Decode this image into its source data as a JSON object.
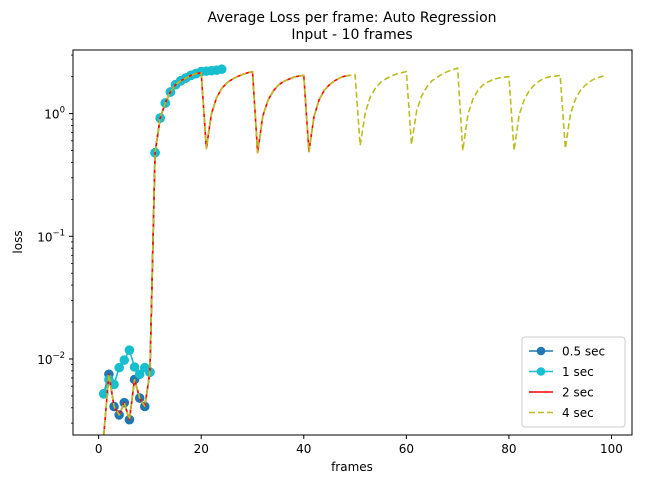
{
  "chart_data": {
    "type": "line",
    "title": "Average Loss per frame: Auto Regression",
    "subtitle": "Input - 10 frames",
    "xlabel": "frames",
    "ylabel": "loss",
    "yscale": "log",
    "xlim": [
      -5,
      104
    ],
    "ylim": [
      0.0024,
      3.3
    ],
    "x_ticks": [
      0,
      20,
      40,
      60,
      80,
      100
    ],
    "x_tick_labels": [
      "0",
      "20",
      "40",
      "60",
      "80",
      "100"
    ],
    "y_ticks": [
      {
        "value": 0.01,
        "base": "10",
        "exp": "−2"
      },
      {
        "value": 0.1,
        "base": "10",
        "exp": "−1"
      },
      {
        "value": 1,
        "base": "10",
        "exp": "0"
      }
    ],
    "legend_position": "lower right",
    "series": [
      {
        "name": "0.5 sec",
        "color": "#1f77b4",
        "style": "solid-marker",
        "x": [
          1,
          2,
          3,
          4,
          5,
          6,
          7,
          8,
          9,
          10,
          11,
          12,
          13,
          14,
          15,
          16,
          17,
          18,
          19
        ],
        "y": [
          0.0052,
          0.0075,
          0.0041,
          0.0035,
          0.0044,
          0.0032,
          0.0068,
          0.0048,
          0.0041,
          0.0078,
          0.48,
          0.92,
          1.22,
          1.5,
          1.72,
          1.85,
          1.95,
          2.05,
          2.12
        ]
      },
      {
        "name": "1 sec",
        "color": "#17becf",
        "style": "solid-marker",
        "x": [
          1,
          2,
          3,
          4,
          5,
          6,
          7,
          8,
          9,
          10,
          11,
          12,
          13,
          14,
          15,
          16,
          17,
          18,
          19,
          20,
          21,
          22,
          23,
          24
        ],
        "y": [
          0.0052,
          0.0068,
          0.0062,
          0.0085,
          0.0098,
          0.0118,
          0.0086,
          0.0075,
          0.0085,
          0.0078,
          0.48,
          0.92,
          1.22,
          1.5,
          1.72,
          1.85,
          1.95,
          2.05,
          2.12,
          2.2,
          2.22,
          2.24,
          2.26,
          2.3
        ]
      },
      {
        "name": "2 sec",
        "color": "#ff0000",
        "style": "solid",
        "x": [
          1,
          2,
          3,
          4,
          5,
          6,
          7,
          8,
          9,
          10,
          11,
          12,
          13,
          14,
          15,
          16,
          17,
          18,
          19,
          20,
          21,
          22,
          23,
          24,
          25,
          26,
          27,
          28,
          29,
          30,
          31,
          32,
          33,
          34,
          35,
          36,
          37,
          38,
          39,
          40,
          41,
          42,
          43,
          44,
          45,
          46,
          47,
          48,
          49
        ],
        "y": [
          0.0024,
          0.0075,
          0.0041,
          0.0035,
          0.0044,
          0.0032,
          0.0068,
          0.0048,
          0.0041,
          0.0078,
          0.48,
          0.92,
          1.22,
          1.5,
          1.72,
          1.85,
          1.95,
          2.05,
          2.12,
          2.15,
          0.52,
          1.0,
          1.35,
          1.6,
          1.78,
          1.9,
          2.0,
          2.08,
          2.15,
          2.2,
          0.48,
          0.95,
          1.28,
          1.52,
          1.7,
          1.82,
          1.9,
          1.98,
          2.02,
          2.05,
          0.49,
          0.95,
          1.3,
          1.55,
          1.72,
          1.85,
          1.95,
          2.02,
          2.05
        ]
      },
      {
        "name": "4 sec",
        "color": "#bcbd22",
        "style": "dashed",
        "x": [
          1,
          2,
          3,
          4,
          5,
          6,
          7,
          8,
          9,
          10,
          11,
          12,
          13,
          14,
          15,
          16,
          17,
          18,
          19,
          20,
          21,
          22,
          23,
          24,
          25,
          26,
          27,
          28,
          29,
          30,
          31,
          32,
          33,
          34,
          35,
          36,
          37,
          38,
          39,
          40,
          41,
          42,
          43,
          44,
          45,
          46,
          47,
          48,
          49,
          50,
          51,
          52,
          53,
          54,
          55,
          56,
          57,
          58,
          59,
          60,
          61,
          62,
          63,
          64,
          65,
          66,
          67,
          68,
          69,
          70,
          71,
          72,
          73,
          74,
          75,
          76,
          77,
          78,
          79,
          80,
          81,
          82,
          83,
          84,
          85,
          86,
          87,
          88,
          89,
          90,
          91,
          92,
          93,
          94,
          95,
          96,
          97,
          98,
          99
        ],
        "y": [
          0.0024,
          0.0075,
          0.0041,
          0.0035,
          0.0044,
          0.0032,
          0.0068,
          0.0048,
          0.0041,
          0.0078,
          0.48,
          0.92,
          1.22,
          1.5,
          1.72,
          1.85,
          1.95,
          2.05,
          2.12,
          2.15,
          0.52,
          1.0,
          1.35,
          1.6,
          1.78,
          1.9,
          2.0,
          2.08,
          2.15,
          2.2,
          0.48,
          0.95,
          1.28,
          1.52,
          1.7,
          1.82,
          1.9,
          1.98,
          2.02,
          2.05,
          0.49,
          0.95,
          1.3,
          1.55,
          1.72,
          1.85,
          1.95,
          2.02,
          2.05,
          2.08,
          0.55,
          1.02,
          1.38,
          1.62,
          1.8,
          1.92,
          2.02,
          2.1,
          2.15,
          2.2,
          0.56,
          1.05,
          1.4,
          1.65,
          1.85,
          1.98,
          2.1,
          2.2,
          2.28,
          2.35,
          0.5,
          0.98,
          1.32,
          1.56,
          1.72,
          1.82,
          1.9,
          1.95,
          1.98,
          2.0,
          0.5,
          0.98,
          1.3,
          1.55,
          1.72,
          1.85,
          1.95,
          2.0,
          2.02,
          2.05,
          0.52,
          1.0,
          1.32,
          1.56,
          1.72,
          1.85,
          1.95,
          2.0,
          2.05
        ]
      }
    ]
  }
}
